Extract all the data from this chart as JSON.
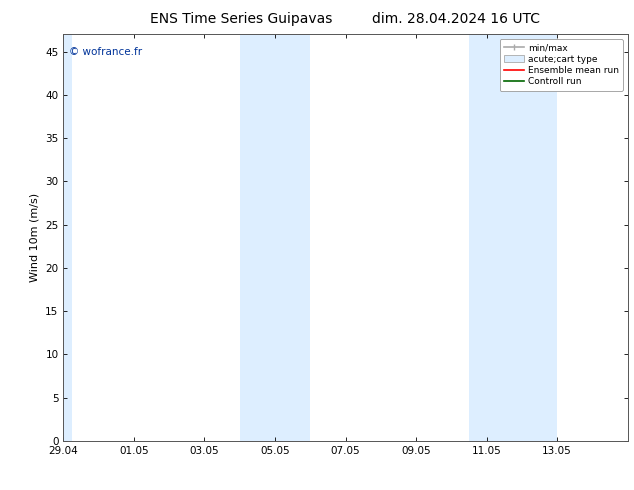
{
  "title_left": "ENS Time Series Guipavas",
  "title_right": "dim. 28.04.2024 16 UTC",
  "ylabel": "Wind 10m (m/s)",
  "watermark": "© wofrance.fr",
  "watermark_color": "#003399",
  "xlim_start": 0,
  "xlim_end": 16,
  "ylim": [
    0,
    47
  ],
  "yticks": [
    0,
    5,
    10,
    15,
    20,
    25,
    30,
    35,
    40,
    45
  ],
  "xtick_labels": [
    "29.04",
    "01.05",
    "03.05",
    "05.05",
    "07.05",
    "09.05",
    "11.05",
    "13.05"
  ],
  "xtick_positions": [
    0,
    2,
    4,
    6,
    8,
    10,
    12,
    14
  ],
  "background_color": "#ffffff",
  "shaded_bands": [
    {
      "x_start": 0.0,
      "x_end": 0.25,
      "color": "#ddeeff"
    },
    {
      "x_start": 5.0,
      "x_end": 7.0,
      "color": "#ddeeff"
    },
    {
      "x_start": 11.5,
      "x_end": 14.0,
      "color": "#ddeeff"
    }
  ],
  "legend_entries": [
    {
      "label": "min/max",
      "color": "#aaaaaa",
      "lw": 1.2
    },
    {
      "label": "acute;cart type",
      "color": "#cce4f5",
      "patch": true
    },
    {
      "label": "Ensemble mean run",
      "color": "#ff0000",
      "lw": 1.2
    },
    {
      "label": "Controll run",
      "color": "#006600",
      "lw": 1.2
    }
  ],
  "title_fontsize": 10,
  "tick_fontsize": 7.5,
  "ylabel_fontsize": 8,
  "watermark_fontsize": 7.5
}
